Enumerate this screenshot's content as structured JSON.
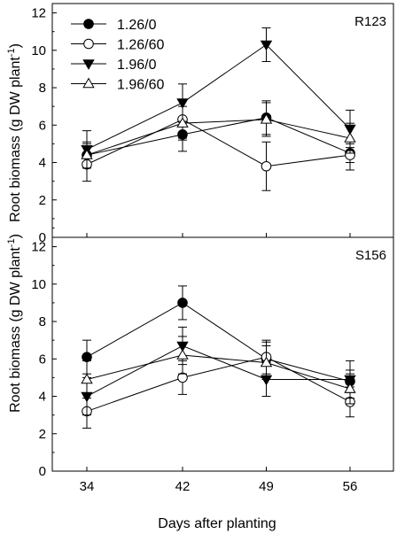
{
  "chart_data": {
    "type": "line",
    "x": [
      34,
      42,
      49,
      56
    ],
    "xlabel": "Days after planting",
    "ylabel_main": "Root biomass (g DW plant",
    "ylabel_sup": "-1",
    "ylabel_close": ")",
    "ylim": [
      0,
      12.5
    ],
    "yticks": [
      0,
      2,
      4,
      6,
      8,
      10,
      12
    ],
    "legend_position": "top-left of upper panel",
    "series_styles": [
      {
        "name": "1.26/0",
        "marker": "circle",
        "fill": "#000000"
      },
      {
        "name": "1.26/60",
        "marker": "circle",
        "fill": "#ffffff"
      },
      {
        "name": "1.96/0",
        "marker": "triangle-down",
        "fill": "#000000"
      },
      {
        "name": "1.96/60",
        "marker": "triangle-up",
        "fill": "#ffffff"
      }
    ],
    "panels": [
      {
        "label": "R123",
        "series": [
          {
            "name": "1.26/0",
            "values": [
              4.4,
              5.5,
              6.4,
              4.5
            ],
            "errors": [
              0.6,
              0.9,
              0.9,
              0.5
            ]
          },
          {
            "name": "1.26/60",
            "values": [
              3.9,
              6.3,
              3.8,
              4.4
            ],
            "errors": [
              0.9,
              1.0,
              1.3,
              0.8
            ]
          },
          {
            "name": "1.96/0",
            "values": [
              4.7,
              7.2,
              10.3,
              5.8
            ],
            "errors": [
              1.0,
              1.0,
              0.9,
              1.0
            ]
          },
          {
            "name": "1.96/60",
            "values": [
              4.4,
              6.1,
              6.3,
              5.3
            ],
            "errors": [
              0.7,
              0.9,
              0.9,
              0.8
            ]
          }
        ]
      },
      {
        "label": "S156",
        "series": [
          {
            "name": "1.26/0",
            "values": [
              6.1,
              9.0,
              6.0,
              4.8
            ],
            "errors": [
              0.9,
              0.9,
              0.9,
              0.6
            ]
          },
          {
            "name": "1.26/60",
            "values": [
              3.2,
              5.0,
              6.1,
              3.7
            ],
            "errors": [
              0.9,
              0.9,
              0.9,
              0.8
            ]
          },
          {
            "name": "1.96/0",
            "values": [
              4.0,
              6.7,
              4.9,
              4.9
            ],
            "errors": [
              1.0,
              1.0,
              0.9,
              1.0
            ]
          },
          {
            "name": "1.96/60",
            "values": [
              4.9,
              6.2,
              5.8,
              4.4
            ],
            "errors": [
              1.0,
              1.0,
              0.9,
              0.8
            ]
          }
        ]
      }
    ]
  }
}
